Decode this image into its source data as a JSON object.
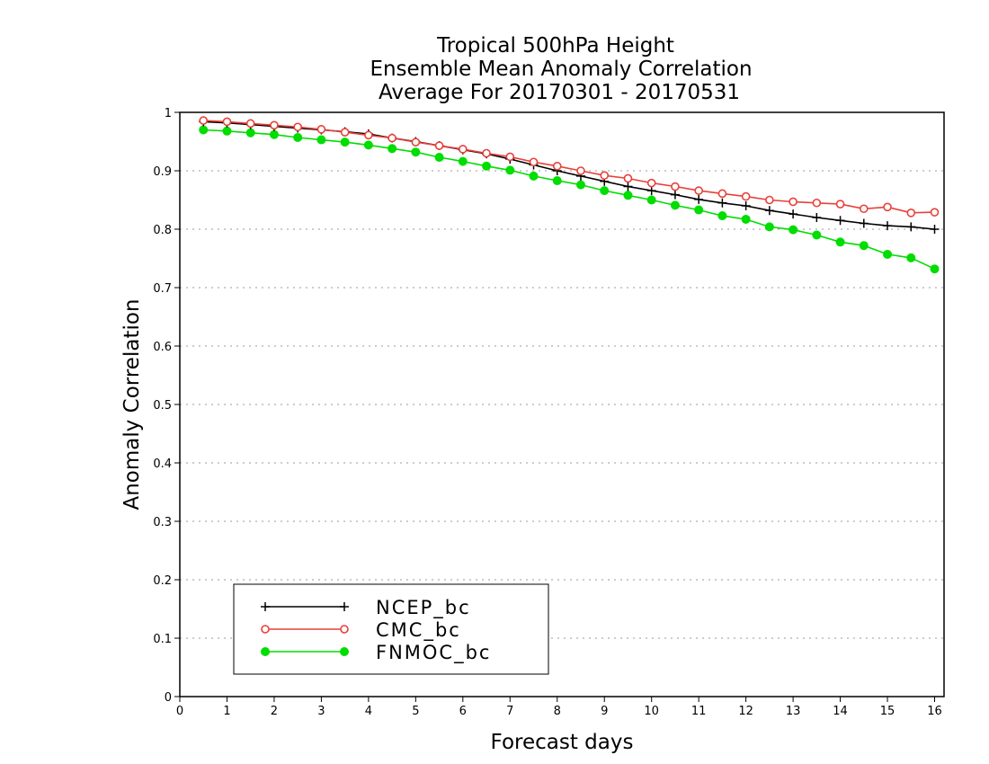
{
  "chart_data": {
    "type": "line",
    "title_lines": [
      "Tropical 500hPa Height",
      "Ensemble Mean Anomaly Correlation",
      "Average For 20170301 - 20170531"
    ],
    "xlabel": "Forecast days",
    "ylabel": "Anomaly Correlation",
    "xlim": [
      0,
      16.2
    ],
    "ylim": [
      0,
      1
    ],
    "x_ticks": [
      "0",
      "1",
      "2",
      "3",
      "4",
      "5",
      "6",
      "7",
      "8",
      "9",
      "10",
      "11",
      "12",
      "13",
      "14",
      "15",
      "16"
    ],
    "y_ticks": [
      "0",
      "0.1",
      "0.2",
      "0.3",
      "0.4",
      "0.5",
      "0.6",
      "0.7",
      "0.8",
      "0.9",
      "1"
    ],
    "grid": "horizontal dotted",
    "legend_position": "bottom-left",
    "x": [
      0.5,
      1,
      1.5,
      2,
      2.5,
      3,
      3.5,
      4,
      4.5,
      5,
      5.5,
      6,
      6.5,
      7,
      7.5,
      8,
      8.5,
      9,
      9.5,
      10,
      10.5,
      11,
      11.5,
      12,
      12.5,
      13,
      13.5,
      14,
      14.5,
      15,
      15.5,
      16
    ],
    "series": [
      {
        "name": "NCEP_bc",
        "color": "#000000",
        "marker": "plus",
        "values": [
          0.984,
          0.982,
          0.979,
          0.976,
          0.973,
          0.97,
          0.967,
          0.963,
          0.956,
          0.95,
          0.943,
          0.936,
          0.929,
          0.92,
          0.91,
          0.9,
          0.891,
          0.882,
          0.873,
          0.866,
          0.859,
          0.851,
          0.845,
          0.84,
          0.832,
          0.826,
          0.82,
          0.815,
          0.81,
          0.806,
          0.804,
          0.8
        ]
      },
      {
        "name": "CMC_bc",
        "color": "#e8403a",
        "marker": "open-circle",
        "values": [
          0.986,
          0.984,
          0.981,
          0.978,
          0.975,
          0.971,
          0.966,
          0.961,
          0.956,
          0.949,
          0.943,
          0.937,
          0.93,
          0.924,
          0.915,
          0.908,
          0.9,
          0.892,
          0.887,
          0.879,
          0.873,
          0.866,
          0.861,
          0.856,
          0.85,
          0.847,
          0.845,
          0.843,
          0.835,
          0.838,
          0.828,
          0.829
        ]
      },
      {
        "name": "FNMOC_bc",
        "color": "#00dd00",
        "marker": "filled-circle",
        "values": [
          0.97,
          0.968,
          0.965,
          0.962,
          0.957,
          0.953,
          0.949,
          0.944,
          0.938,
          0.932,
          0.923,
          0.916,
          0.908,
          0.901,
          0.891,
          0.883,
          0.876,
          0.866,
          0.858,
          0.85,
          0.841,
          0.833,
          0.823,
          0.817,
          0.804,
          0.799,
          0.79,
          0.778,
          0.772,
          0.757,
          0.751,
          0.732
        ]
      }
    ]
  }
}
